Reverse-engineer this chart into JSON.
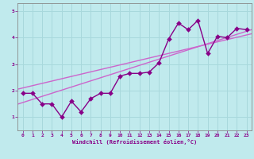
{
  "xlabel": "Windchill (Refroidissement éolien,°C)",
  "background_color": "#c0eaed",
  "grid_color": "#a8d8dc",
  "line_color": "#880088",
  "trend_color": "#cc66cc",
  "scatter_x": [
    0,
    1,
    2,
    3,
    4,
    5,
    6,
    7,
    8,
    9,
    10,
    11,
    12,
    13,
    14,
    15,
    16,
    17,
    18,
    19,
    20,
    21,
    22,
    23
  ],
  "scatter_y": [
    1.9,
    1.9,
    1.5,
    1.5,
    1.0,
    1.6,
    1.2,
    1.7,
    1.9,
    1.9,
    2.55,
    2.65,
    2.65,
    2.7,
    3.05,
    3.95,
    4.55,
    4.3,
    4.65,
    3.4,
    4.05,
    4.0,
    4.35,
    4.3
  ],
  "xlim": [
    -0.5,
    23.5
  ],
  "ylim": [
    0.5,
    5.3
  ],
  "yticks": [
    1,
    2,
    3,
    4,
    5
  ],
  "xticks": [
    0,
    1,
    2,
    3,
    4,
    5,
    6,
    7,
    8,
    9,
    10,
    11,
    12,
    13,
    14,
    15,
    16,
    17,
    18,
    19,
    20,
    21,
    22,
    23
  ],
  "marker_size": 3,
  "linewidth": 1.0,
  "trend1": {
    "slope": 0.117,
    "intercept": 1.55
  },
  "trend2": {
    "slope": 0.087,
    "intercept": 2.1
  }
}
